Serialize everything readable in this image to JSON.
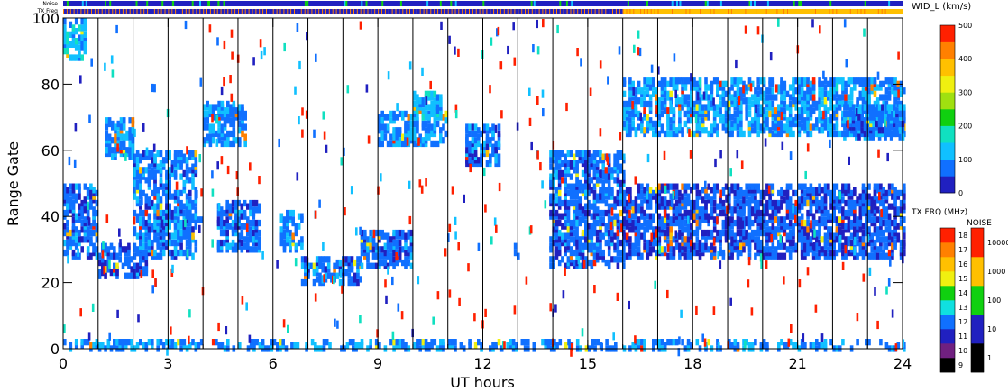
{
  "chart_data": {
    "type": "heatmap",
    "title": "",
    "xlabel": "UT hours",
    "ylabel": "Range Gate",
    "xlim": [
      0,
      24
    ],
    "ylim": [
      0,
      100
    ],
    "x_ticks": [
      "0",
      "3",
      "6",
      "9",
      "12",
      "15",
      "18",
      "21",
      "24"
    ],
    "y_ticks": [
      "0",
      "20",
      "40",
      "60",
      "80",
      "100"
    ],
    "minor_x_every_hours": 1,
    "grid": "vertical line at every hour",
    "top_strips": {
      "noise_label": "Noise",
      "freq_label": "TX Freq",
      "freq_switch_hour": 16
    },
    "colorbars": [
      {
        "name": "width",
        "title": "WID_L (km/s)",
        "range": [
          0,
          500
        ],
        "tick_labels": [
          "0",
          "100",
          "200",
          "300",
          "400",
          "500"
        ],
        "colors": [
          "#2020c0",
          "#1070ff",
          "#10c0ff",
          "#10e0c0",
          "#10d010",
          "#a0e010",
          "#f0f010",
          "#ffc000",
          "#ff8000",
          "#ff2000"
        ]
      },
      {
        "name": "tx_freq",
        "title": "TX FRQ (MHz)",
        "tick_labels": [
          "9",
          "10",
          "11",
          "12",
          "13",
          "14",
          "15",
          "16",
          "17",
          "18"
        ],
        "colors": [
          "#000000",
          "#702080",
          "#2020c0",
          "#1070ff",
          "#10e0e0",
          "#10d010",
          "#f0f010",
          "#ffc000",
          "#ff8000",
          "#ff2000"
        ]
      },
      {
        "name": "noise",
        "title": "NOISE",
        "tick_labels": [
          "1",
          "10",
          "100",
          "1000",
          "10000"
        ],
        "colors": [
          "#000000",
          "#2020c0",
          "#10d010",
          "#ffc000",
          "#ff2000"
        ]
      }
    ],
    "echo_regions": [
      {
        "x": [
          0.0,
          1.0
        ],
        "y": [
          28,
          50
        ],
        "width": 70
      },
      {
        "x": [
          0.0,
          0.6
        ],
        "y": [
          88,
          100
        ],
        "width": 120
      },
      {
        "x": [
          1.0,
          2.4
        ],
        "y": [
          22,
          32
        ],
        "width": 70
      },
      {
        "x": [
          1.2,
          2.0
        ],
        "y": [
          58,
          70
        ],
        "width": 90
      },
      {
        "x": [
          2.0,
          3.8
        ],
        "y": [
          28,
          60
        ],
        "width": 80
      },
      {
        "x": [
          3.5,
          4.0
        ],
        "y": [
          38,
          42
        ],
        "width": 70
      },
      {
        "x": [
          4.0,
          5.2
        ],
        "y": [
          62,
          75
        ],
        "width": 90
      },
      {
        "x": [
          4.4,
          5.6
        ],
        "y": [
          30,
          45
        ],
        "width": 70
      },
      {
        "x": [
          6.2,
          6.8
        ],
        "y": [
          30,
          42
        ],
        "width": 90
      },
      {
        "x": [
          6.8,
          8.5
        ],
        "y": [
          20,
          28
        ],
        "width": 80
      },
      {
        "x": [
          8.5,
          10.0
        ],
        "y": [
          25,
          36
        ],
        "width": 70
      },
      {
        "x": [
          9.0,
          11.0
        ],
        "y": [
          62,
          72
        ],
        "width": 90
      },
      {
        "x": [
          10.0,
          10.8
        ],
        "y": [
          70,
          78
        ],
        "width": 120
      },
      {
        "x": [
          11.5,
          12.5
        ],
        "y": [
          56,
          68
        ],
        "width": 80
      },
      {
        "x": [
          12.8,
          13.1
        ],
        "y": [
          28,
          32
        ],
        "width": 70
      },
      {
        "x": [
          13.9,
          16.0
        ],
        "y": [
          25,
          60
        ],
        "width": 70
      },
      {
        "x": [
          16.0,
          24.0
        ],
        "y": [
          28,
          50
        ],
        "width": 60
      },
      {
        "x": [
          16.0,
          24.0
        ],
        "y": [
          65,
          82
        ],
        "width": 100
      },
      {
        "x": [
          22.3,
          24.0
        ],
        "y": [
          64,
          74
        ],
        "width": 80
      },
      {
        "x": [
          0.0,
          24.0
        ],
        "y": [
          0,
          3
        ],
        "width": 90
      }
    ]
  }
}
